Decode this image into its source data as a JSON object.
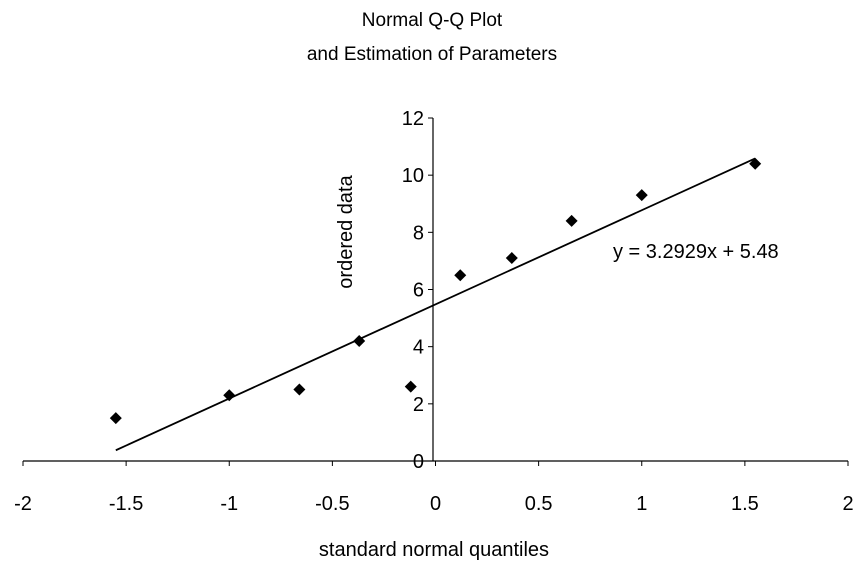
{
  "chart_data": {
    "type": "scatter",
    "title": [
      "Normal Q-Q Plot",
      "and Estimation of Parameters"
    ],
    "xlabel": "standard normal quantiles",
    "ylabel": "ordered data",
    "xlim": [
      -2,
      2
    ],
    "ylim": [
      0,
      12
    ],
    "x_ticks": [
      -2,
      -1.5,
      -1,
      -0.5,
      0,
      0.5,
      1,
      1.5,
      2
    ],
    "x_tick_labels": [
      "-2",
      "-1.5",
      "-1",
      "-0.5",
      "0",
      "0.5",
      "1",
      "1.5",
      "2"
    ],
    "y_ticks": [
      0,
      2,
      4,
      6,
      8,
      10,
      12
    ],
    "y_tick_labels": [
      "0",
      "2",
      "4",
      "6",
      "8",
      "10",
      "12"
    ],
    "grid": false,
    "series": [
      {
        "marker": "diamond",
        "color": "#000000",
        "x": [
          -1.55,
          -1.0,
          -0.66,
          -0.37,
          -0.12,
          0.12,
          0.37,
          0.66,
          1.0,
          1.55
        ],
        "y": [
          1.5,
          2.3,
          2.5,
          4.2,
          2.6,
          6.5,
          7.1,
          8.4,
          9.3,
          10.4
        ]
      }
    ],
    "trendline": {
      "slope": 3.2929,
      "intercept": 5.48,
      "x_range": [
        -1.55,
        1.55
      ],
      "color": "#000000",
      "label": "y = 3.2929x + 5.48"
    }
  }
}
